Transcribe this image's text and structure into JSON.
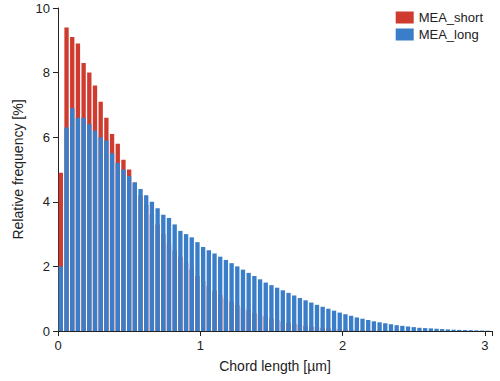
{
  "chart_data": {
    "type": "histogram",
    "xlabel": "Chord length [µm]",
    "ylabel": "Relative frequency [%]",
    "bins": [
      0,
      0.04,
      0.08,
      0.12,
      0.16,
      0.2,
      0.24,
      0.28,
      0.32,
      0.36,
      0.4,
      0.44,
      0.48,
      0.52,
      0.56,
      0.6,
      0.64,
      0.68,
      0.72,
      0.76,
      0.8,
      0.84,
      0.88,
      0.92,
      0.96,
      1,
      1.04,
      1.08,
      1.12,
      1.16,
      1.2,
      1.24,
      1.28,
      1.32,
      1.36,
      1.4,
      1.44,
      1.48,
      1.52,
      1.56,
      1.6,
      1.64,
      1.68,
      1.72,
      1.76,
      1.8,
      1.84,
      1.88,
      1.92,
      1.96,
      2,
      2.04,
      2.08,
      2.12,
      2.16,
      2.2,
      2.24,
      2.28,
      2.32,
      2.36,
      2.4,
      2.44,
      2.48,
      2.52,
      2.56,
      2.6,
      2.64,
      2.68,
      2.72,
      2.76,
      2.8,
      2.84,
      2.88,
      2.92,
      2.96,
      3,
      3.04
    ],
    "series": [
      {
        "name": "MEA_short",
        "color": "#cf3b2e",
        "values": [
          4.9,
          9.4,
          9.1,
          8.9,
          8.3,
          8.0,
          7.6,
          7.1,
          6.6,
          6.1,
          5.8,
          5.3,
          5.0,
          4.6,
          4.2,
          3.9,
          3.6,
          3.3,
          3.0,
          2.7,
          2.5,
          2.3,
          2.1,
          1.9,
          1.7,
          1.55,
          1.4,
          1.25,
          1.1,
          1.0,
          0.9,
          0.8,
          0.72,
          0.64,
          0.56,
          0.5,
          0.44,
          0.38,
          0.33,
          0.29,
          0.25,
          0.22,
          0.19,
          0.16,
          0.14,
          0.12,
          0.1,
          0.085,
          0.07,
          0.06,
          0.05,
          0.04,
          0.035,
          0.03,
          0.025,
          0.02,
          0.018,
          0.015,
          0.012,
          0.01,
          0.008,
          0.006,
          0.005,
          0.004,
          0.003,
          0.002,
          0.002,
          0.001,
          0.001,
          0,
          0,
          0,
          0,
          0,
          0,
          0
        ]
      },
      {
        "name": "MEA_long",
        "color": "#3a7dc9",
        "values": [
          2.0,
          6.3,
          6.9,
          6.6,
          6.6,
          6.4,
          6.2,
          6.0,
          5.9,
          5.5,
          5.2,
          5.0,
          4.8,
          4.6,
          4.4,
          4.2,
          4.0,
          3.8,
          3.6,
          3.5,
          3.3,
          3.1,
          3.0,
          2.9,
          2.75,
          2.6,
          2.5,
          2.4,
          2.3,
          2.2,
          2.1,
          2.0,
          1.9,
          1.8,
          1.7,
          1.6,
          1.5,
          1.42,
          1.34,
          1.26,
          1.18,
          1.1,
          1.02,
          0.95,
          0.88,
          0.81,
          0.75,
          0.69,
          0.63,
          0.57,
          0.52,
          0.47,
          0.42,
          0.38,
          0.34,
          0.3,
          0.27,
          0.24,
          0.21,
          0.18,
          0.16,
          0.14,
          0.12,
          0.1,
          0.09,
          0.08,
          0.07,
          0.06,
          0.05,
          0.04,
          0.035,
          0.03,
          0.025,
          0.02,
          0.015,
          0.01
        ]
      }
    ],
    "xlim": [
      0,
      3.05
    ],
    "xticks": [
      0,
      1,
      2,
      3
    ],
    "ylim": [
      0,
      10
    ],
    "yticks": [
      0,
      2,
      4,
      6,
      8,
      10
    ],
    "grid": false,
    "legend": "upper right"
  }
}
